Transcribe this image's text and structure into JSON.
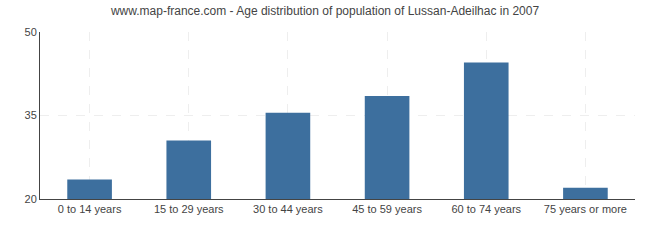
{
  "chart_data": {
    "type": "bar",
    "title": "www.map-france.com - Age distribution of population of Lussan-Adeilhac in 2007",
    "categories": [
      "0 to 14 years",
      "15 to 29 years",
      "30 to 44 years",
      "45 to 59 years",
      "60 to 74 years",
      "75 years or more"
    ],
    "values": [
      23.5,
      30.5,
      35.5,
      38.5,
      44.5,
      22.0
    ],
    "color": "#3d6f9e",
    "ylim": [
      20,
      50
    ],
    "yticks": [
      20,
      35,
      50
    ],
    "grid": true
  }
}
